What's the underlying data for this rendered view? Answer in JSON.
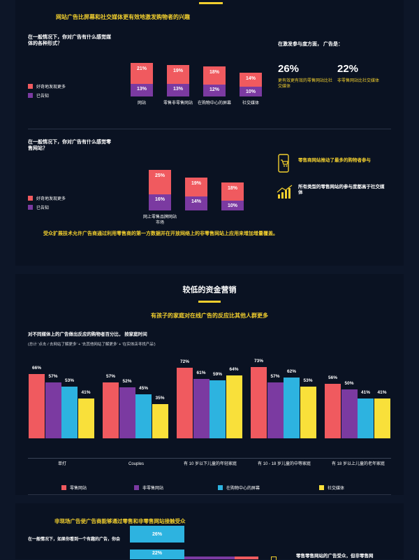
{
  "top_section": {
    "title": "网站广告比屏幕和社交媒体更有效地激发购物者的兴趣",
    "question1": "在一般情况下，你对广告有什么感觉媒体的各种形式？",
    "legend": [
      "好奇地发现更多",
      "已告知"
    ],
    "chart1": {
      "type": "bar",
      "categories": [
        "网站",
        "零售非零售网站",
        "在购物中心的屏幕",
        "社交媒体"
      ],
      "series": [
        {
          "name": "好奇地发现更多",
          "values": [
            21,
            19,
            18,
            14
          ]
        },
        {
          "name": "已告知",
          "values": [
            13,
            13,
            12,
            10
          ]
        }
      ]
    },
    "engage_title": "在激发参与度方面， 广告是：",
    "stats": [
      {
        "value": "26%",
        "desc": "更有效更有效的零售网站比社交媒体"
      },
      {
        "value": "22%",
        "desc": "非零售网站比社交媒体"
      }
    ],
    "question2": "在一般情况下，你对广告有什么感觉零售网站？",
    "chart2": {
      "type": "bar",
      "categories": [
        "网上零售品牌网站市场",
        "",
        ""
      ],
      "series": [
        {
          "name": "好奇地发现更多",
          "values": [
            25,
            19,
            18
          ]
        },
        {
          "name": "已告知",
          "values": [
            16,
            14,
            10
          ]
        }
      ]
    },
    "insight1": "零售商网站推动了最多的购物者参与",
    "insight2": "所有类型的零售网站的参与度都高于社交媒体",
    "footer": "受众扩展技术允许广告商通过利用零售商的第一方数据并在开放网络上的非零售网站上应用来增加增量覆盖。"
  },
  "mid_section": {
    "heading": "较低的资金营销",
    "subtitle": "有孩子的家庭对在线广告的反应比其他人群更多",
    "desc_line1": "对不同媒体上的广告做出反应的购物者百分比， 按家庭时间",
    "desc_line2": "(总计 '点击 / 去网站了解更多' + '去其他网站了解更多' + '在实体店寻找产品')",
    "chart_data": {
      "type": "bar",
      "categories": [
        "单打",
        "Couples",
        "有 10 岁以下儿童的年轻家庭",
        "有 10 - 18 岁儿童的中等家庭",
        "有 18 岁以上儿童的老年家庭"
      ],
      "series": [
        {
          "name": "零售网站",
          "values": [
            66,
            57,
            72,
            73,
            56
          ],
          "color": "#f05a5f"
        },
        {
          "name": "非零售网站",
          "values": [
            57,
            52,
            61,
            57,
            50
          ],
          "color": "#7b3aa1"
        },
        {
          "name": "在购物中心的屏幕",
          "values": [
            53,
            45,
            59,
            62,
            41
          ],
          "color": "#2db3e0"
        },
        {
          "name": "社交媒体",
          "values": [
            41,
            35,
            64,
            53,
            41
          ],
          "color": "#f9e03a"
        }
      ],
      "ylim": [
        0,
        100
      ]
    }
  },
  "bottom_section": {
    "title": "非现场广告使广告商能够通过零售和非零售网站接触受众",
    "question": "在一般情况下，如果你看到一个有趣的广告，你会",
    "bars": [
      "26%",
      "22%"
    ],
    "partial_text": "零售零售网站的广告受众，但非零售网"
  },
  "colors": {
    "coral": "#f05a5f",
    "purple": "#7b3aa1",
    "cyan": "#2db3e0",
    "yellow": "#f9e03a"
  }
}
